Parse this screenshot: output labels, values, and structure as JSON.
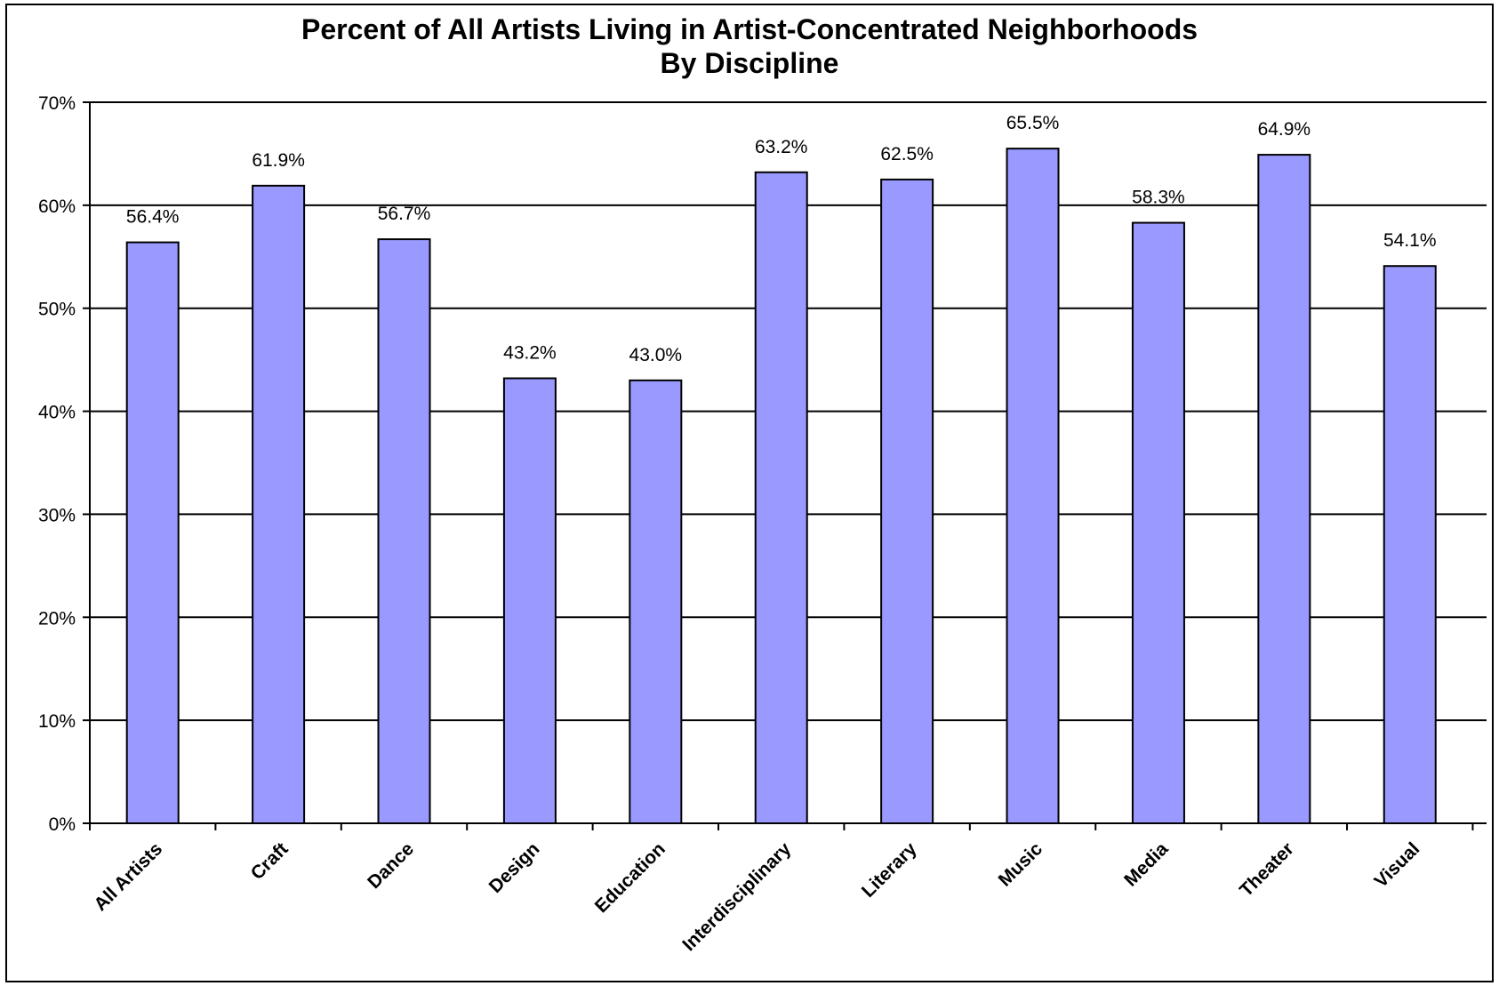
{
  "chart_data": {
    "type": "bar",
    "title": "Percent of All Artists Living in Artist-Concentrated Neighborhoods",
    "subtitle": "By Discipline",
    "xlabel": "",
    "ylabel": "",
    "categories": [
      "All Artists",
      "Craft",
      "Dance",
      "Design",
      "Education",
      "Interdisciplinary",
      "Literary",
      "Music",
      "Media",
      "Theater",
      "Visual"
    ],
    "values": [
      56.4,
      61.9,
      56.7,
      43.2,
      43.0,
      63.2,
      62.5,
      65.5,
      58.3,
      64.9,
      54.1
    ],
    "data_labels": [
      "56.4%",
      "61.9%",
      "56.7%",
      "43.2%",
      "43.0%",
      "63.2%",
      "62.5%",
      "65.5%",
      "58.3%",
      "64.9%",
      "54.1%"
    ],
    "ylim": [
      0,
      70
    ],
    "y_ticks": [
      0,
      10,
      20,
      30,
      40,
      50,
      60,
      70
    ],
    "y_tick_labels": [
      "0%",
      "10%",
      "20%",
      "30%",
      "40%",
      "50%",
      "60%",
      "70%"
    ],
    "grid": true,
    "legend": "none",
    "colors": {
      "bar": "#9999ff",
      "bar_edge": "#000000",
      "grid": "#000000"
    }
  }
}
